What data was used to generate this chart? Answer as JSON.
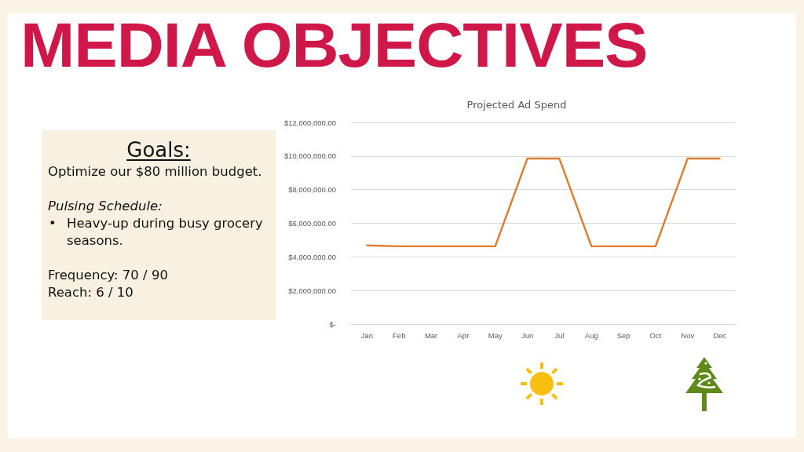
{
  "chart_data": {
    "type": "line",
    "title": "Projected Ad Spend",
    "annotations": [
      "MEDIA OBJECTIVES",
      "Goals:",
      "Optimize our $80 million budget.",
      "Pulsing Schedule:",
      "• Heavy-up during busy grocery seasons.",
      "Frequency: 70 / 90",
      "Reach: 6 / 10"
    ],
    "categories": [
      "Jan",
      "Feb",
      "Mar",
      "Apr",
      "May",
      "Jun",
      "Jul",
      "Aug",
      "Sep",
      "Oct",
      "Nov",
      "Dec"
    ],
    "values": [
      4680000,
      4630000,
      4630000,
      4630000,
      4630000,
      9850000,
      9850000,
      4630000,
      4630000,
      4630000,
      9850000,
      9850000
    ],
    "color": "#e07a2c",
    "ylim": [
      0,
      12000000
    ],
    "yticks": [
      {
        "value": 0,
        "label": "$-"
      },
      {
        "value": 2000000,
        "label": "$2,000,000.00"
      },
      {
        "value": 4000000,
        "label": "$4,000,000.00"
      },
      {
        "value": 6000000,
        "label": "$6,000,000.00"
      },
      {
        "value": 8000000,
        "label": "$8,000,000.00"
      },
      {
        "value": 10000000,
        "label": "$10,000,000.00"
      },
      {
        "value": 12000000,
        "label": "$12,000,000.00"
      }
    ],
    "grid": "y",
    "marker": "none",
    "line_style": "solid"
  }
}
